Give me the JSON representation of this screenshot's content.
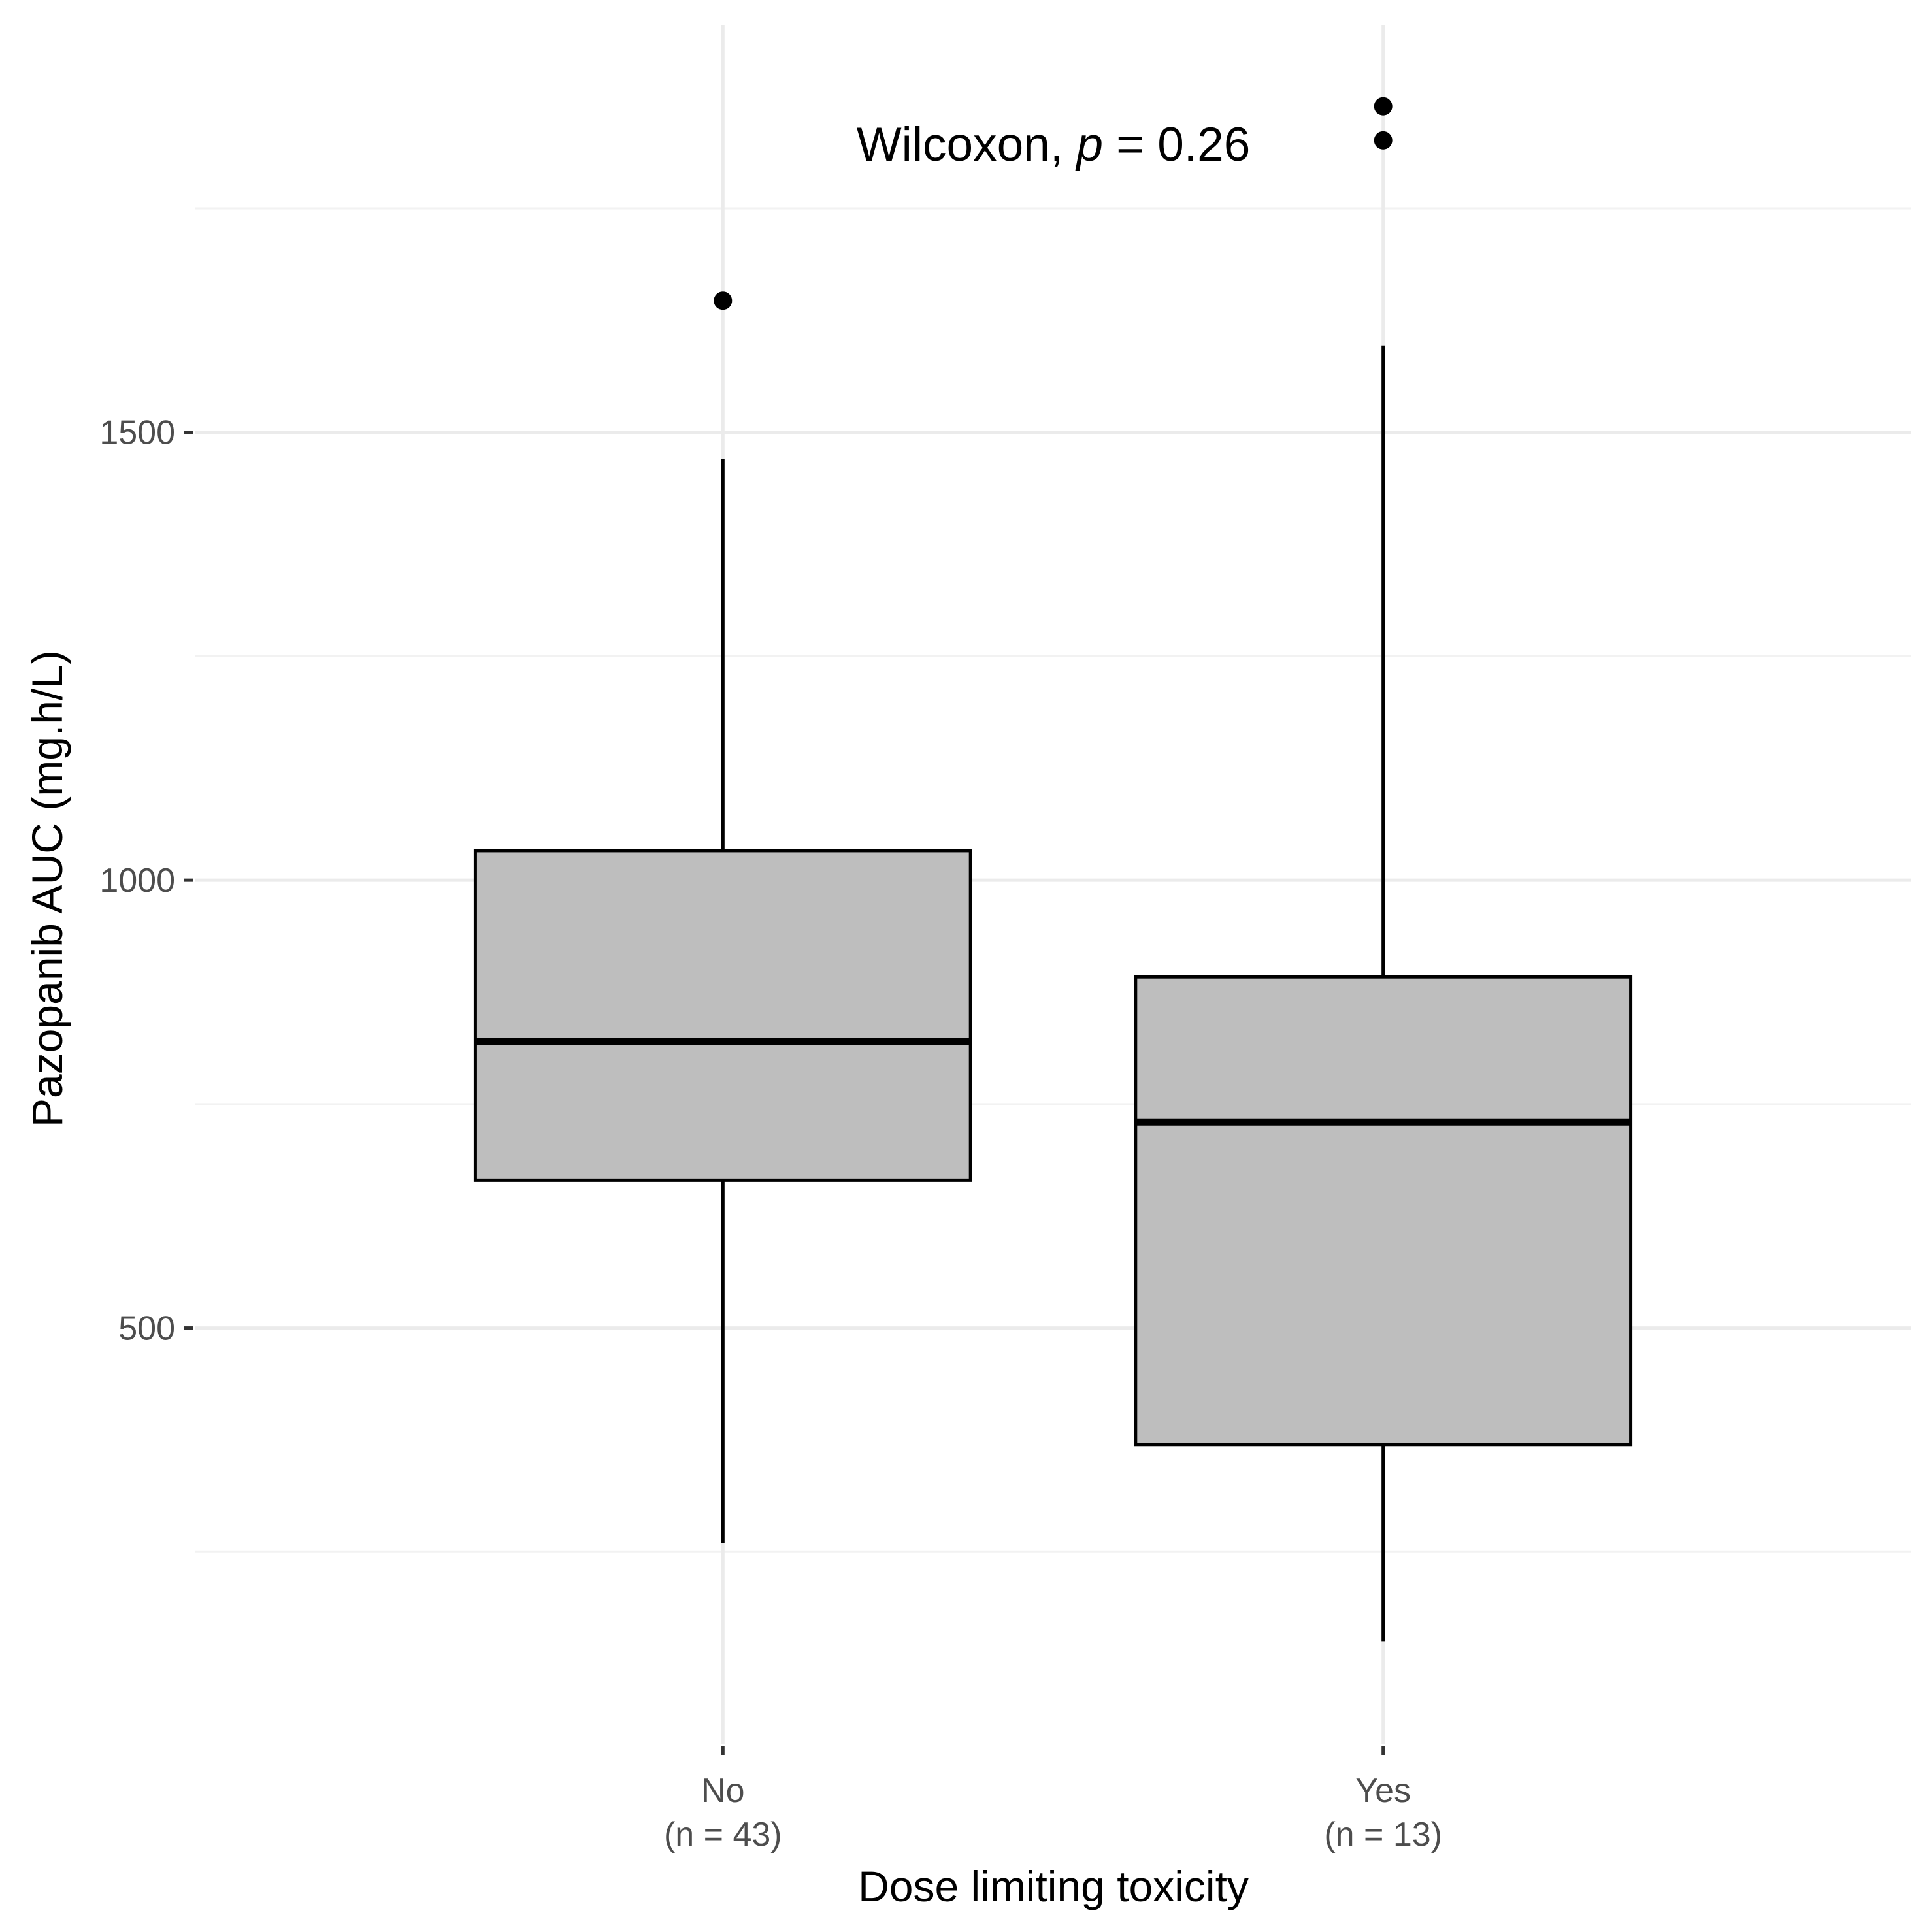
{
  "chart_data": {
    "type": "boxplot",
    "xlabel": "Dose limiting toxicity",
    "ylabel": "Pazopanib AUC (mg.h/L)",
    "ylim": [
      35,
      1955
    ],
    "yticks": [
      500,
      1000,
      1500
    ],
    "grid": true,
    "annotation": {
      "prefix": "Wilcoxon, ",
      "p_symbol": "p",
      "suffix": " = 0.26"
    },
    "groups": [
      {
        "category": "No",
        "n_label": "(n = 43)",
        "whisker_low": 260,
        "q1": 665,
        "median": 820,
        "q3": 1033,
        "whisker_high": 1470,
        "outliers": [
          1647
        ]
      },
      {
        "category": "Yes",
        "n_label": "(n = 13)",
        "whisker_low": 150,
        "q1": 370,
        "median": 730,
        "q3": 892,
        "whisker_high": 1597,
        "outliers": [
          1826,
          1864
        ]
      }
    ],
    "colors": {
      "box_fill": "#bebebe",
      "box_stroke": "#000000",
      "grid_major": "#ebebeb",
      "grid_minor": "#f2f2f2",
      "background": "#ffffff"
    }
  }
}
